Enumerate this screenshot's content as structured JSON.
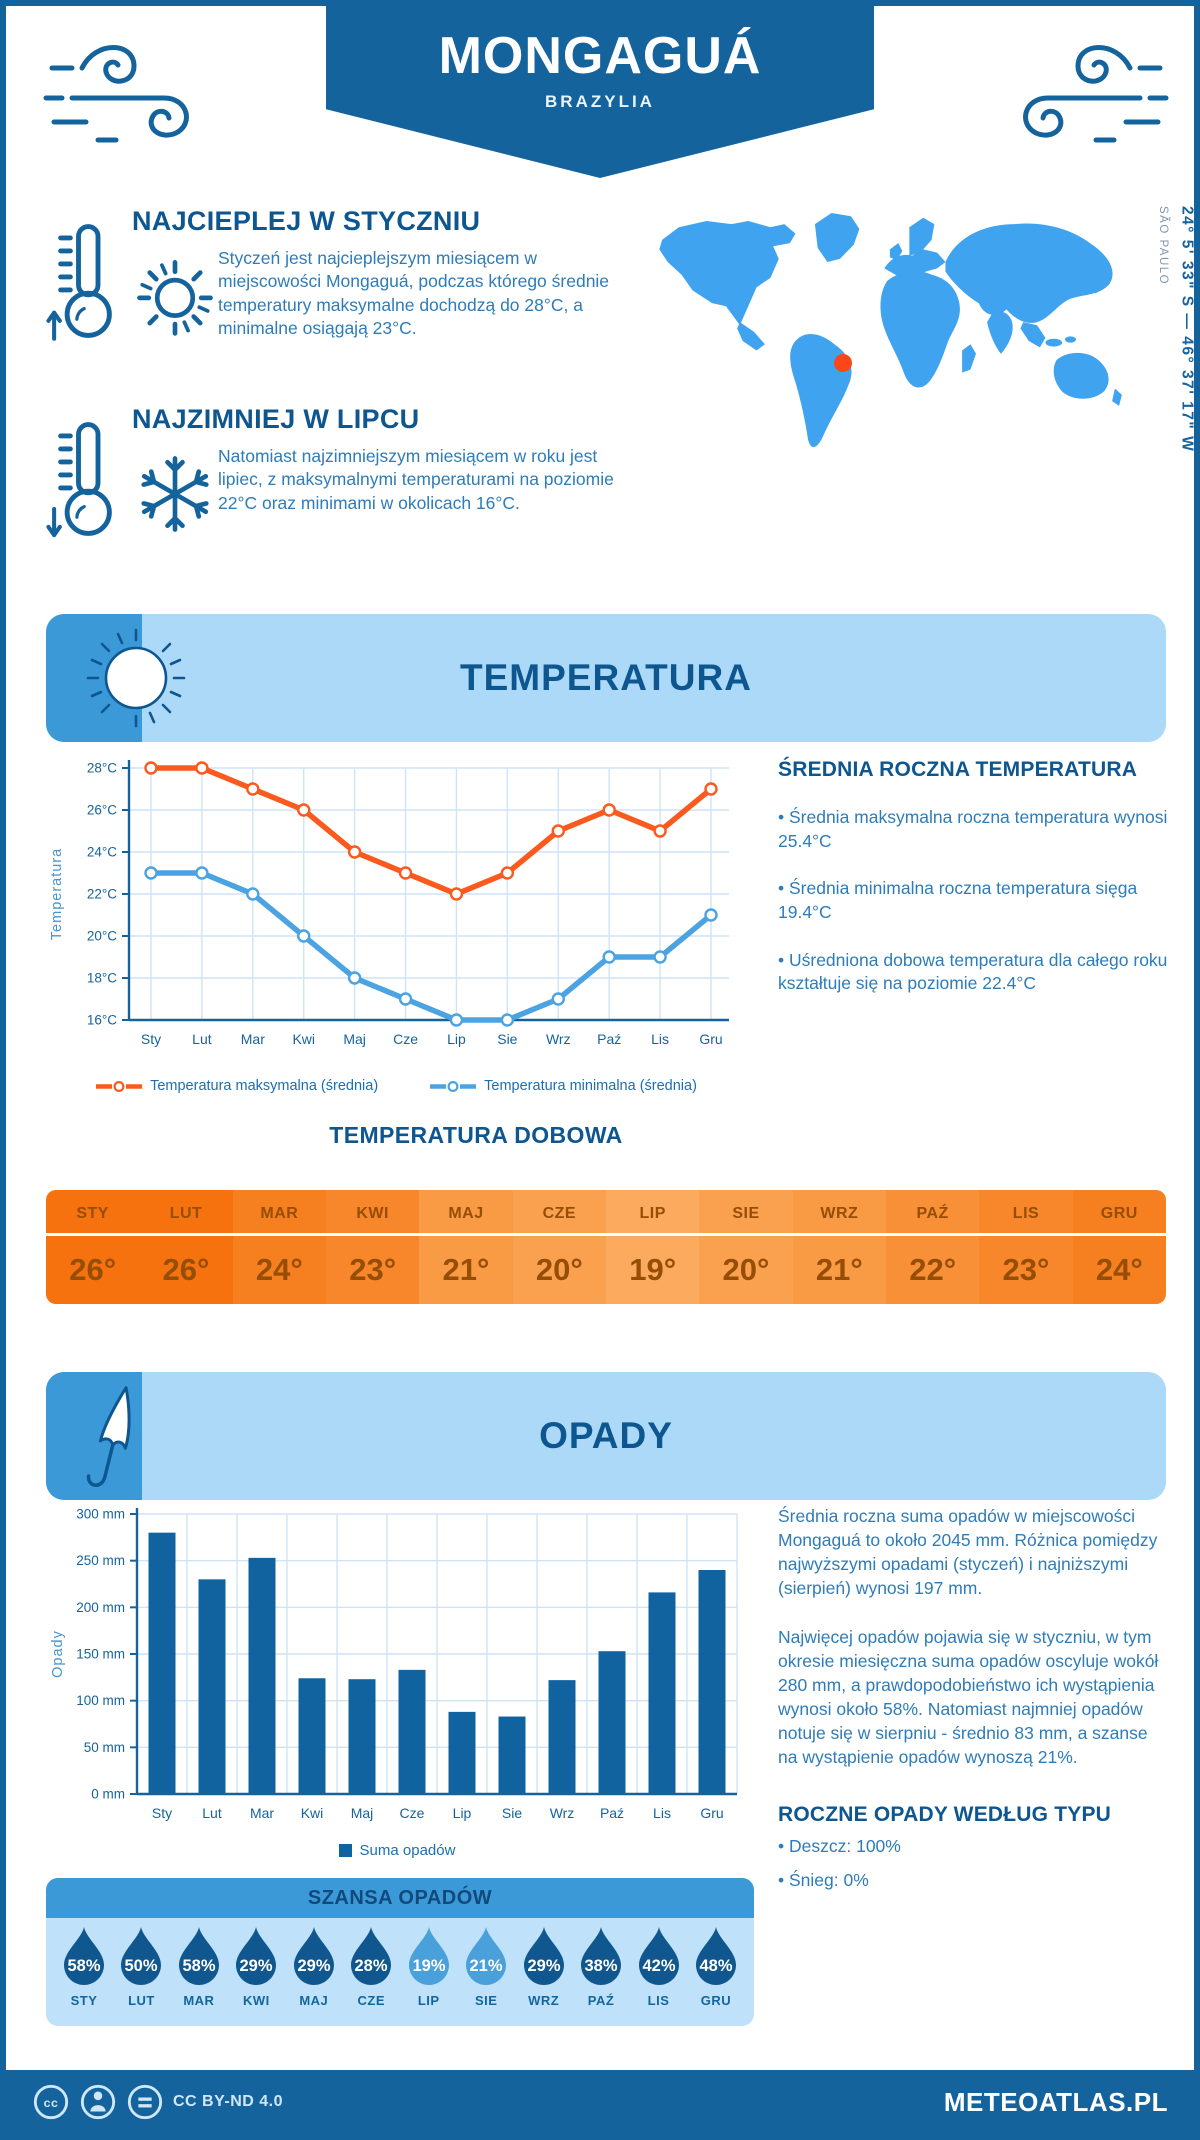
{
  "page": {
    "title": "MONGAGUÁ",
    "subtitle": "BRAZYLIA",
    "accent": "#15639d",
    "light_banner": "#acd9f7"
  },
  "facts": {
    "warmest": {
      "title": "NAJCIEPLEJ W STYCZNIU",
      "text": "Styczeń jest najcieplejszym miesiącem w miejscowości Mongaguá, podczas którego średnie temperatury maksymalne dochodzą do 28°C, a minimalne osiągają 23°C."
    },
    "coldest": {
      "title": "NAJZIMNIEJ W LIPCU",
      "text": "Natomiast najzimniejszym miesiącem w roku jest lipiec, z maksymalnymi temperaturami na poziomie 22°C oraz minimami w okolicach 16°C."
    }
  },
  "map": {
    "coordinates": "24° 5' 33\" S — 46° 37' 17\" W",
    "region": "SÃO PAULO",
    "land_color": "#3fa3ef",
    "marker_color": "#fb4716"
  },
  "temperature_section": {
    "title": "TEMPERATURA",
    "annual_heading": "ŚREDNIA ROCZNA TEMPERATURA",
    "annual_bullets": [
      "• Średnia maksymalna roczna temperatura wynosi 25.4°C",
      "• Średnia minimalna roczna temperatura sięga 19.4°C",
      "• Uśredniona dobowa temperatura dla całego roku kształtuje się na poziomie 22.4°C"
    ],
    "daily_heading": "TEMPERATURA DOBOWA"
  },
  "chart_data": [
    {
      "type": "line",
      "x": [
        "Sty",
        "Lut",
        "Mar",
        "Kwi",
        "Maj",
        "Cze",
        "Lip",
        "Sie",
        "Wrz",
        "Paź",
        "Lis",
        "Gru"
      ],
      "ylabel": "Temperatura",
      "ylim": [
        16,
        28
      ],
      "ytick_step": 2,
      "ytick_suffix": "°C",
      "grid": true,
      "legend_position": "bottom",
      "series": [
        {
          "name": "Temperatura maksymalna (średnia)",
          "color": "#fb5a1f",
          "values": [
            28,
            28,
            27,
            26,
            24,
            23,
            22,
            23,
            25,
            26,
            25,
            27
          ]
        },
        {
          "name": "Temperatura minimalna (średnia)",
          "color": "#4ba3e2",
          "values": [
            23,
            23,
            22,
            20,
            18,
            17,
            16,
            16,
            17,
            19,
            19,
            21
          ]
        }
      ]
    },
    {
      "type": "bar",
      "categories": [
        "Sty",
        "Lut",
        "Mar",
        "Kwi",
        "Maj",
        "Cze",
        "Lip",
        "Sie",
        "Wrz",
        "Paź",
        "Lis",
        "Gru"
      ],
      "values": [
        280,
        230,
        253,
        124,
        123,
        133,
        88,
        83,
        122,
        153,
        216,
        240
      ],
      "ylabel": "Opady",
      "ylim": [
        0,
        300
      ],
      "ytick_step": 50,
      "ytick_suffix": " mm",
      "grid": true,
      "bar_color": "#11639f",
      "legend": "Suma opadów"
    }
  ],
  "monthly_table": {
    "months": [
      "STY",
      "LUT",
      "MAR",
      "KWI",
      "MAJ",
      "CZE",
      "LIP",
      "SIE",
      "WRZ",
      "PAŹ",
      "LIS",
      "GRU"
    ],
    "values": [
      "26°",
      "26°",
      "24°",
      "23°",
      "21°",
      "20°",
      "19°",
      "20°",
      "21°",
      "22°",
      "23°",
      "24°"
    ],
    "colors": [
      "#f5720e",
      "#f5720e",
      "#f67f1f",
      "#f8862b",
      "#f99a44",
      "#faa150",
      "#fbaa5e",
      "#faa150",
      "#f99a44",
      "#f89038",
      "#f8862b",
      "#f67f1f"
    ]
  },
  "precipitation_section": {
    "title": "OPADY",
    "paragraphs": [
      "Średnia roczna suma opadów w miejscowości Mongaguá to około 2045 mm. Różnica pomiędzy najwyższymi opadami (styczeń) i najniższymi (sierpień) wynosi 197 mm.",
      "Najwięcej opadów pojawia się w styczniu, w tym okresie miesięczna suma opadów oscyluje wokół 280 mm, a prawdopodobieństwo ich wystąpienia wynosi około 58%. Natomiast najmniej opadów notuje się w sierpniu - średnio 83 mm, a szanse na wystąpienie opadów wynoszą 21%."
    ],
    "type_heading": "ROCZNE OPADY WEDŁUG TYPU",
    "type_bullets": [
      "• Deszcz: 100%",
      "• Śnieg: 0%"
    ],
    "chance": {
      "title": "SZANSA OPADÓW",
      "months": [
        "STY",
        "LUT",
        "MAR",
        "KWI",
        "MAJ",
        "CZE",
        "LIP",
        "SIE",
        "WRZ",
        "PAŹ",
        "LIS",
        "GRU"
      ],
      "values": [
        "58%",
        "50%",
        "58%",
        "29%",
        "29%",
        "28%",
        "19%",
        "21%",
        "29%",
        "38%",
        "42%",
        "48%"
      ],
      "shades": [
        "dark",
        "dark",
        "dark",
        "dark",
        "dark",
        "dark",
        "light",
        "light",
        "dark",
        "dark",
        "dark",
        "dark"
      ],
      "drop_dark": "#11578f",
      "drop_light": "#4aa0da"
    }
  },
  "footer": {
    "license": "CC BY-ND 4.0",
    "brand": "METEOATLAS.PL"
  }
}
